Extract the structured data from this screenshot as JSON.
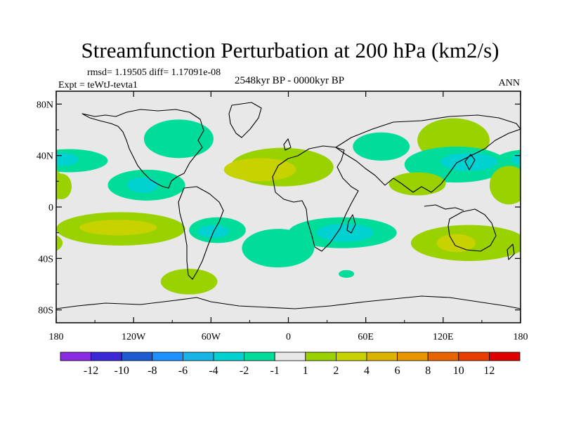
{
  "title": "Streamfunction Perturbation at 200 hPa (km2/s)",
  "stats": "rmsd= 1.19505 diff= 1.17091e-08",
  "experiment": "Expt = teWtJ-tevta1",
  "period": "2548kyr BP - 0000kyr BP",
  "season": "ANN",
  "chart_data": {
    "type": "contour-map",
    "projection": "cylindrical-equidistant",
    "variable": "Streamfunction perturbation, 200 hPa",
    "units": "km2/s",
    "x_range": [
      -180,
      180
    ],
    "y_range": [
      -90,
      90
    ],
    "x_ticks": [
      {
        "value": -180,
        "label": "180"
      },
      {
        "value": -120,
        "label": "120W"
      },
      {
        "value": -60,
        "label": "60W"
      },
      {
        "value": 0,
        "label": "0"
      },
      {
        "value": 60,
        "label": "60E"
      },
      {
        "value": 120,
        "label": "120E"
      },
      {
        "value": 180,
        "label": "180"
      }
    ],
    "y_ticks": [
      {
        "value": 80,
        "label": "80N"
      },
      {
        "value": 40,
        "label": "40N"
      },
      {
        "value": 0,
        "label": "0"
      },
      {
        "value": -40,
        "label": "40S"
      },
      {
        "value": -80,
        "label": "80S"
      }
    ],
    "colorbar": {
      "colors": [
        "#8a2be2",
        "#3c28d6",
        "#1e5ad2",
        "#1e90ff",
        "#19b4e6",
        "#00d2d2",
        "#00dc9a",
        "#e8e8e8",
        "#9ad200",
        "#c8d200",
        "#dcb400",
        "#e89600",
        "#e86400",
        "#e83c00",
        "#e00000"
      ],
      "labels": [
        "-12",
        "-10",
        "-8",
        "-6",
        "-4",
        "-2",
        "-1",
        "1",
        "2",
        "4",
        "6",
        "8",
        "10",
        "12"
      ]
    },
    "anomalies": [
      {
        "name": "north-america-negative",
        "lon": -85,
        "lat": 53,
        "rx": 27,
        "ry": 15,
        "level": -1
      },
      {
        "name": "north-pacific-east-negative",
        "lon": -170,
        "lat": 36,
        "rx": 30,
        "ry": 9,
        "level": -1
      },
      {
        "name": "north-pacific-east-core",
        "lon": -175,
        "lat": 37,
        "rx": 12,
        "ry": 5,
        "level": -2
      },
      {
        "name": "central-american-negative",
        "lon": -110,
        "lat": 17,
        "rx": 30,
        "ry": 12,
        "level": -1
      },
      {
        "name": "central-american-core",
        "lon": -113,
        "lat": 17,
        "rx": 12,
        "ry": 6,
        "level": -2
      },
      {
        "name": "north-atlantic-positive",
        "lon": -5,
        "lat": 31,
        "rx": 40,
        "ry": 15,
        "level": 1
      },
      {
        "name": "north-atlantic-core",
        "lon": -22,
        "lat": 29,
        "rx": 28,
        "ry": 9,
        "level": 2
      },
      {
        "name": "central-asia-negative",
        "lon": 72,
        "lat": 47,
        "rx": 22,
        "ry": 11,
        "level": -1
      },
      {
        "name": "eurasia-pacific-positive",
        "lon": 128,
        "lat": 52,
        "rx": 28,
        "ry": 17,
        "level": 1
      },
      {
        "name": "west-pacific-negative",
        "lon": 130,
        "lat": 33,
        "rx": 40,
        "ry": 14,
        "level": -1
      },
      {
        "name": "west-pacific-core",
        "lon": 140,
        "lat": 35,
        "rx": 22,
        "ry": 7,
        "level": -2
      },
      {
        "name": "southeast-asia-positive",
        "lon": 100,
        "lat": 18,
        "rx": 22,
        "ry": 9,
        "level": 1
      },
      {
        "name": "north-pacific-west-positive",
        "lon": 171,
        "lat": 17,
        "rx": 15,
        "ry": 15,
        "level": 1
      },
      {
        "name": "dateline-north-positive",
        "lon": -176,
        "lat": 16,
        "rx": 8,
        "ry": 10,
        "level": 1
      },
      {
        "name": "south-pacific-positive",
        "lon": -130,
        "lat": -17,
        "rx": 50,
        "ry": 13,
        "level": 1
      },
      {
        "name": "south-pacific-core",
        "lon": -132,
        "lat": -16,
        "rx": 30,
        "ry": 6,
        "level": 2
      },
      {
        "name": "south-america-negative",
        "lon": -55,
        "lat": -18,
        "rx": 22,
        "ry": 10,
        "level": -1
      },
      {
        "name": "south-america-core",
        "lon": -58,
        "lat": -19,
        "rx": 12,
        "ry": 5,
        "level": -2
      },
      {
        "name": "south-atlantic-negative",
        "lon": -8,
        "lat": -32,
        "rx": 28,
        "ry": 15,
        "level": -1
      },
      {
        "name": "indian-ocean-negative",
        "lon": 42,
        "lat": -20,
        "rx": 42,
        "ry": 12,
        "level": -1
      },
      {
        "name": "indian-ocean-core",
        "lon": 44,
        "lat": -20,
        "rx": 22,
        "ry": 7,
        "level": -2
      },
      {
        "name": "australia-positive",
        "lon": 140,
        "lat": -28,
        "rx": 45,
        "ry": 14,
        "level": 1
      },
      {
        "name": "australia-core",
        "lon": 130,
        "lat": -28,
        "rx": 15,
        "ry": 7,
        "level": 2
      },
      {
        "name": "patagonia-positive",
        "lon": -77,
        "lat": -58,
        "rx": 22,
        "ry": 10,
        "level": 1
      },
      {
        "name": "south-indian-small-negative",
        "lon": 45,
        "lat": -52,
        "rx": 6,
        "ry": 3,
        "level": -1
      }
    ]
  }
}
